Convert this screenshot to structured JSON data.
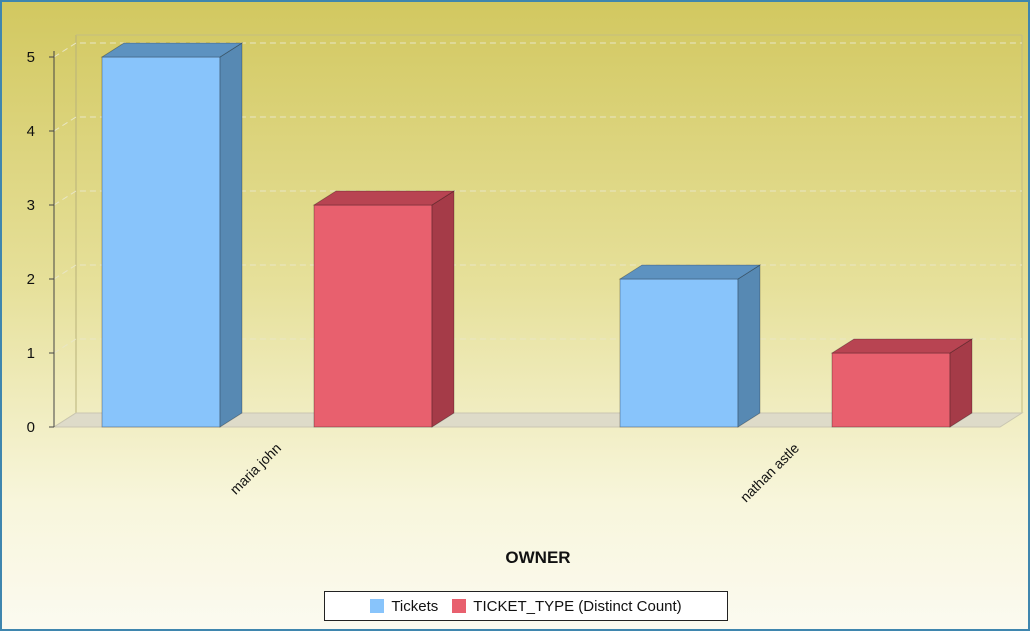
{
  "chart_data": {
    "type": "bar",
    "categories": [
      "maria john",
      "nathan astle"
    ],
    "series": [
      {
        "name": "Tickets",
        "values": [
          5,
          2
        ],
        "color": "#88c4fb",
        "side_color": "#5789b3",
        "top_color": "#5d92c0"
      },
      {
        "name": "TICKET_TYPE (Distinct Count)",
        "values": [
          3,
          1
        ],
        "color": "#e8606e",
        "side_color": "#a53b48",
        "top_color": "#b84452"
      }
    ],
    "xlabel": "OWNER",
    "ylabel": "",
    "ylim": [
      0,
      5
    ],
    "yticks": [
      "0",
      "1",
      "2",
      "3",
      "4",
      "5"
    ],
    "grid": true,
    "legend_position": "bottom",
    "style": "3d"
  }
}
